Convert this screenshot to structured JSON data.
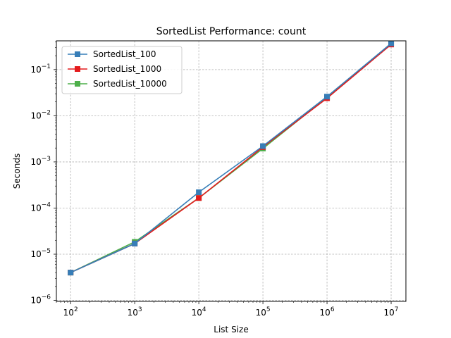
{
  "chart_data": {
    "type": "line",
    "title": "SortedList Performance: count",
    "xlabel": "List Size",
    "ylabel": "Seconds",
    "xscale": "log",
    "yscale": "log",
    "xlim": [
      60,
      17000000
    ],
    "ylim": [
      9.5e-07,
      0.42
    ],
    "grid": true,
    "legend_position": "top-left",
    "x_ticks": [
      {
        "value": 100,
        "base": "10",
        "exp": "2"
      },
      {
        "value": 1000,
        "base": "10",
        "exp": "3"
      },
      {
        "value": 10000,
        "base": "10",
        "exp": "4"
      },
      {
        "value": 100000,
        "base": "10",
        "exp": "5"
      },
      {
        "value": 1000000,
        "base": "10",
        "exp": "6"
      },
      {
        "value": 10000000,
        "base": "10",
        "exp": "7"
      }
    ],
    "y_ticks": [
      {
        "value": 1e-06,
        "base": "10",
        "exp": "−6"
      },
      {
        "value": 1e-05,
        "base": "10",
        "exp": "−5"
      },
      {
        "value": 0.0001,
        "base": "10",
        "exp": "−4"
      },
      {
        "value": 0.001,
        "base": "10",
        "exp": "−3"
      },
      {
        "value": 0.01,
        "base": "10",
        "exp": "−2"
      },
      {
        "value": 0.1,
        "base": "10",
        "exp": "−1"
      }
    ],
    "x": [
      100,
      1000,
      10000,
      100000,
      1000000,
      10000000
    ],
    "series": [
      {
        "name": "SortedList_10000",
        "color": "#4daf4a",
        "values": [
          4e-06,
          1.85e-05,
          0.000165,
          0.00195,
          0.025,
          0.37
        ]
      },
      {
        "name": "SortedList_1000",
        "color": "#e41a1c",
        "values": [
          4e-06,
          1.7e-05,
          0.000165,
          0.0021,
          0.024,
          0.35
        ]
      },
      {
        "name": "SortedList_100",
        "color": "#377eb8",
        "values": [
          4e-06,
          1.7e-05,
          0.00022,
          0.0022,
          0.026,
          0.37
        ]
      }
    ],
    "legend_order": [
      2,
      1,
      0
    ]
  }
}
